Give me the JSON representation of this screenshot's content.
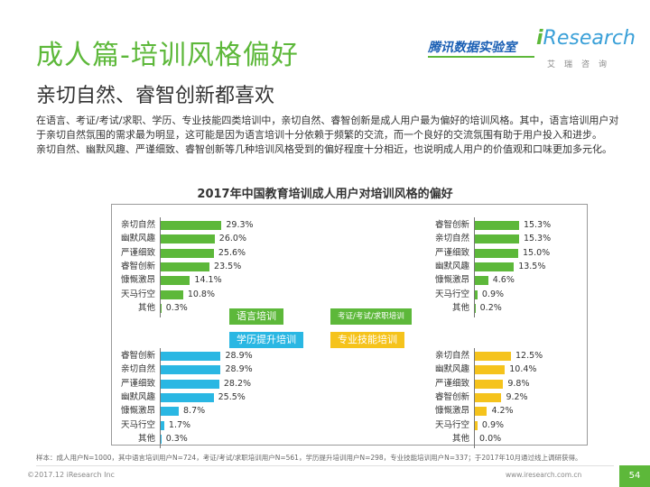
{
  "header": {
    "title": "成人篇-培训风格偏好",
    "subtitle": "亲切自然、睿智创新都喜欢",
    "logo_tencent": "腾讯数据实验室",
    "logo_iresearch_i": "i",
    "logo_iresearch_rest": "Research",
    "logo_iresearch_cn": "艾瑞咨询"
  },
  "intro": {
    "p1": "在语言、考证/考试/求职、学历、专业技能四类培训中，亲切自然、睿智创新是成人用户最为偏好的培训风格。其中，语言培训用户对于亲切自然氛围的需求最为明显，这可能是因为语言培训十分依赖于频繁的交流，而一个良好的交流氛围有助于用户投入和进步。",
    "p2": "亲切自然、幽默风趣、严谨细致、睿智创新等几种培训风格受到的偏好程度十分相近，也说明成人用户的价值观和口味更加多元化。"
  },
  "chart_data": {
    "type": "bar",
    "title": "2017年中国教育培训成人用户对培训风格的偏好",
    "panels": [
      {
        "name": "语言培训",
        "color": "#5db83a",
        "categories": [
          "亲切自然",
          "幽默风趣",
          "严谨细致",
          "睿智创新",
          "慷慨激昂",
          "天马行空",
          "其他"
        ],
        "values": [
          29.3,
          26.0,
          25.6,
          23.5,
          14.1,
          10.8,
          0.3
        ]
      },
      {
        "name": "考证/考试/求职培训",
        "color": "#5db83a",
        "categories": [
          "睿智创新",
          "亲切自然",
          "严谨细致",
          "幽默风趣",
          "慷慨激昂",
          "天马行空",
          "其他"
        ],
        "values": [
          15.3,
          15.3,
          15.0,
          13.5,
          4.6,
          0.9,
          0.2
        ]
      },
      {
        "name": "学历提升培训",
        "color": "#2ab7e3",
        "categories": [
          "睿智创新",
          "亲切自然",
          "严谨细致",
          "幽默风趣",
          "慷慨激昂",
          "天马行空",
          "其他"
        ],
        "values": [
          28.9,
          28.9,
          28.2,
          25.5,
          8.7,
          1.7,
          0.3
        ]
      },
      {
        "name": "专业技能培训",
        "color": "#f5c31c",
        "categories": [
          "亲切自然",
          "幽默风趣",
          "严谨细致",
          "睿智创新",
          "慷慨激昂",
          "天马行空",
          "其他"
        ],
        "values": [
          12.5,
          10.4,
          9.8,
          9.2,
          4.2,
          0.9,
          0.0
        ]
      }
    ],
    "value_format": "percent, one decimal",
    "grid": false
  },
  "footer": {
    "footnote": "样本：成人用户N=1000，其中语言培训用户N=724，考证/考试/求职培训用户N=561，学历提升培训用户N=298，专业技能培训用户N=337；于2017年10月通过线上调研获得。",
    "source": "©2017.12 iResearch Inc",
    "website": "www.iresearch.com.cn",
    "page": "54"
  }
}
